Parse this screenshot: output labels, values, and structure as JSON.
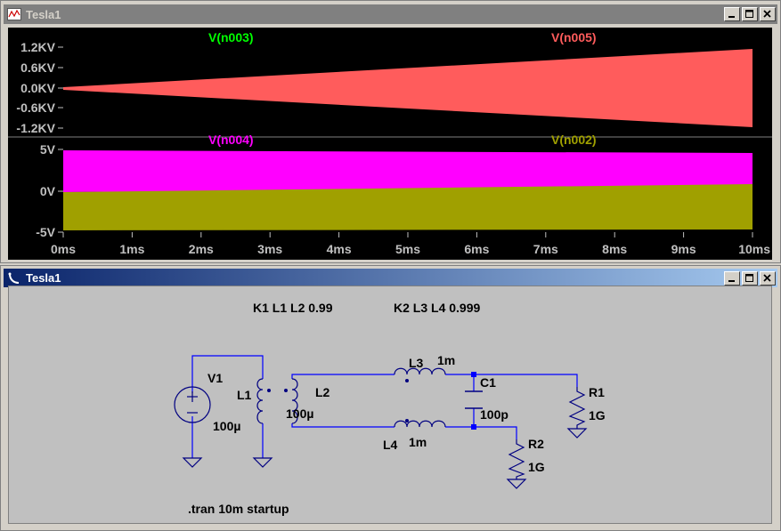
{
  "waveform_window": {
    "title": "Tesla1",
    "pane1": {
      "traces": [
        {
          "name": "V(n003)",
          "color": "#00ff00"
        },
        {
          "name": "V(n005)",
          "color": "#ff5c5c"
        }
      ],
      "y_ticks": [
        "1.2KV",
        "0.6KV",
        "0.0KV",
        "-0.6KV",
        "-1.2KV"
      ]
    },
    "pane2": {
      "traces": [
        {
          "name": "V(n004)",
          "color": "#ff00ff"
        },
        {
          "name": "V(n002)",
          "color": "#a0a000"
        }
      ],
      "y_ticks": [
        "5V",
        "0V",
        "-5V"
      ]
    },
    "x_ticks": [
      "0ms",
      "1ms",
      "2ms",
      "3ms",
      "4ms",
      "5ms",
      "6ms",
      "7ms",
      "8ms",
      "9ms",
      "10ms"
    ]
  },
  "schematic_window": {
    "title": "Tesla1",
    "directives": {
      "k1": "K1 L1 L2 0.99",
      "k2": "K2 L3 L4 0.999",
      "tran": ".tran 10m startup"
    },
    "components": {
      "v1": {
        "name": "V1"
      },
      "l1": {
        "name": "L1",
        "value": "100µ"
      },
      "l2": {
        "name": "L2",
        "value": "100µ"
      },
      "l3": {
        "name": "L3",
        "value": "1m"
      },
      "l4": {
        "name": "L4",
        "value": "1m"
      },
      "c1": {
        "name": "C1",
        "value": "100p"
      },
      "r1": {
        "name": "R1",
        "value": "1G"
      },
      "r2": {
        "name": "R2",
        "value": "1G"
      }
    }
  },
  "colors": {
    "wire": "#0000ff",
    "component": "#000080",
    "plot_bg": "#000000",
    "schematic_bg": "#c0c0c0"
  },
  "title_buttons": {
    "minimize": "minimize",
    "maximize": "maximize",
    "close": "close"
  }
}
